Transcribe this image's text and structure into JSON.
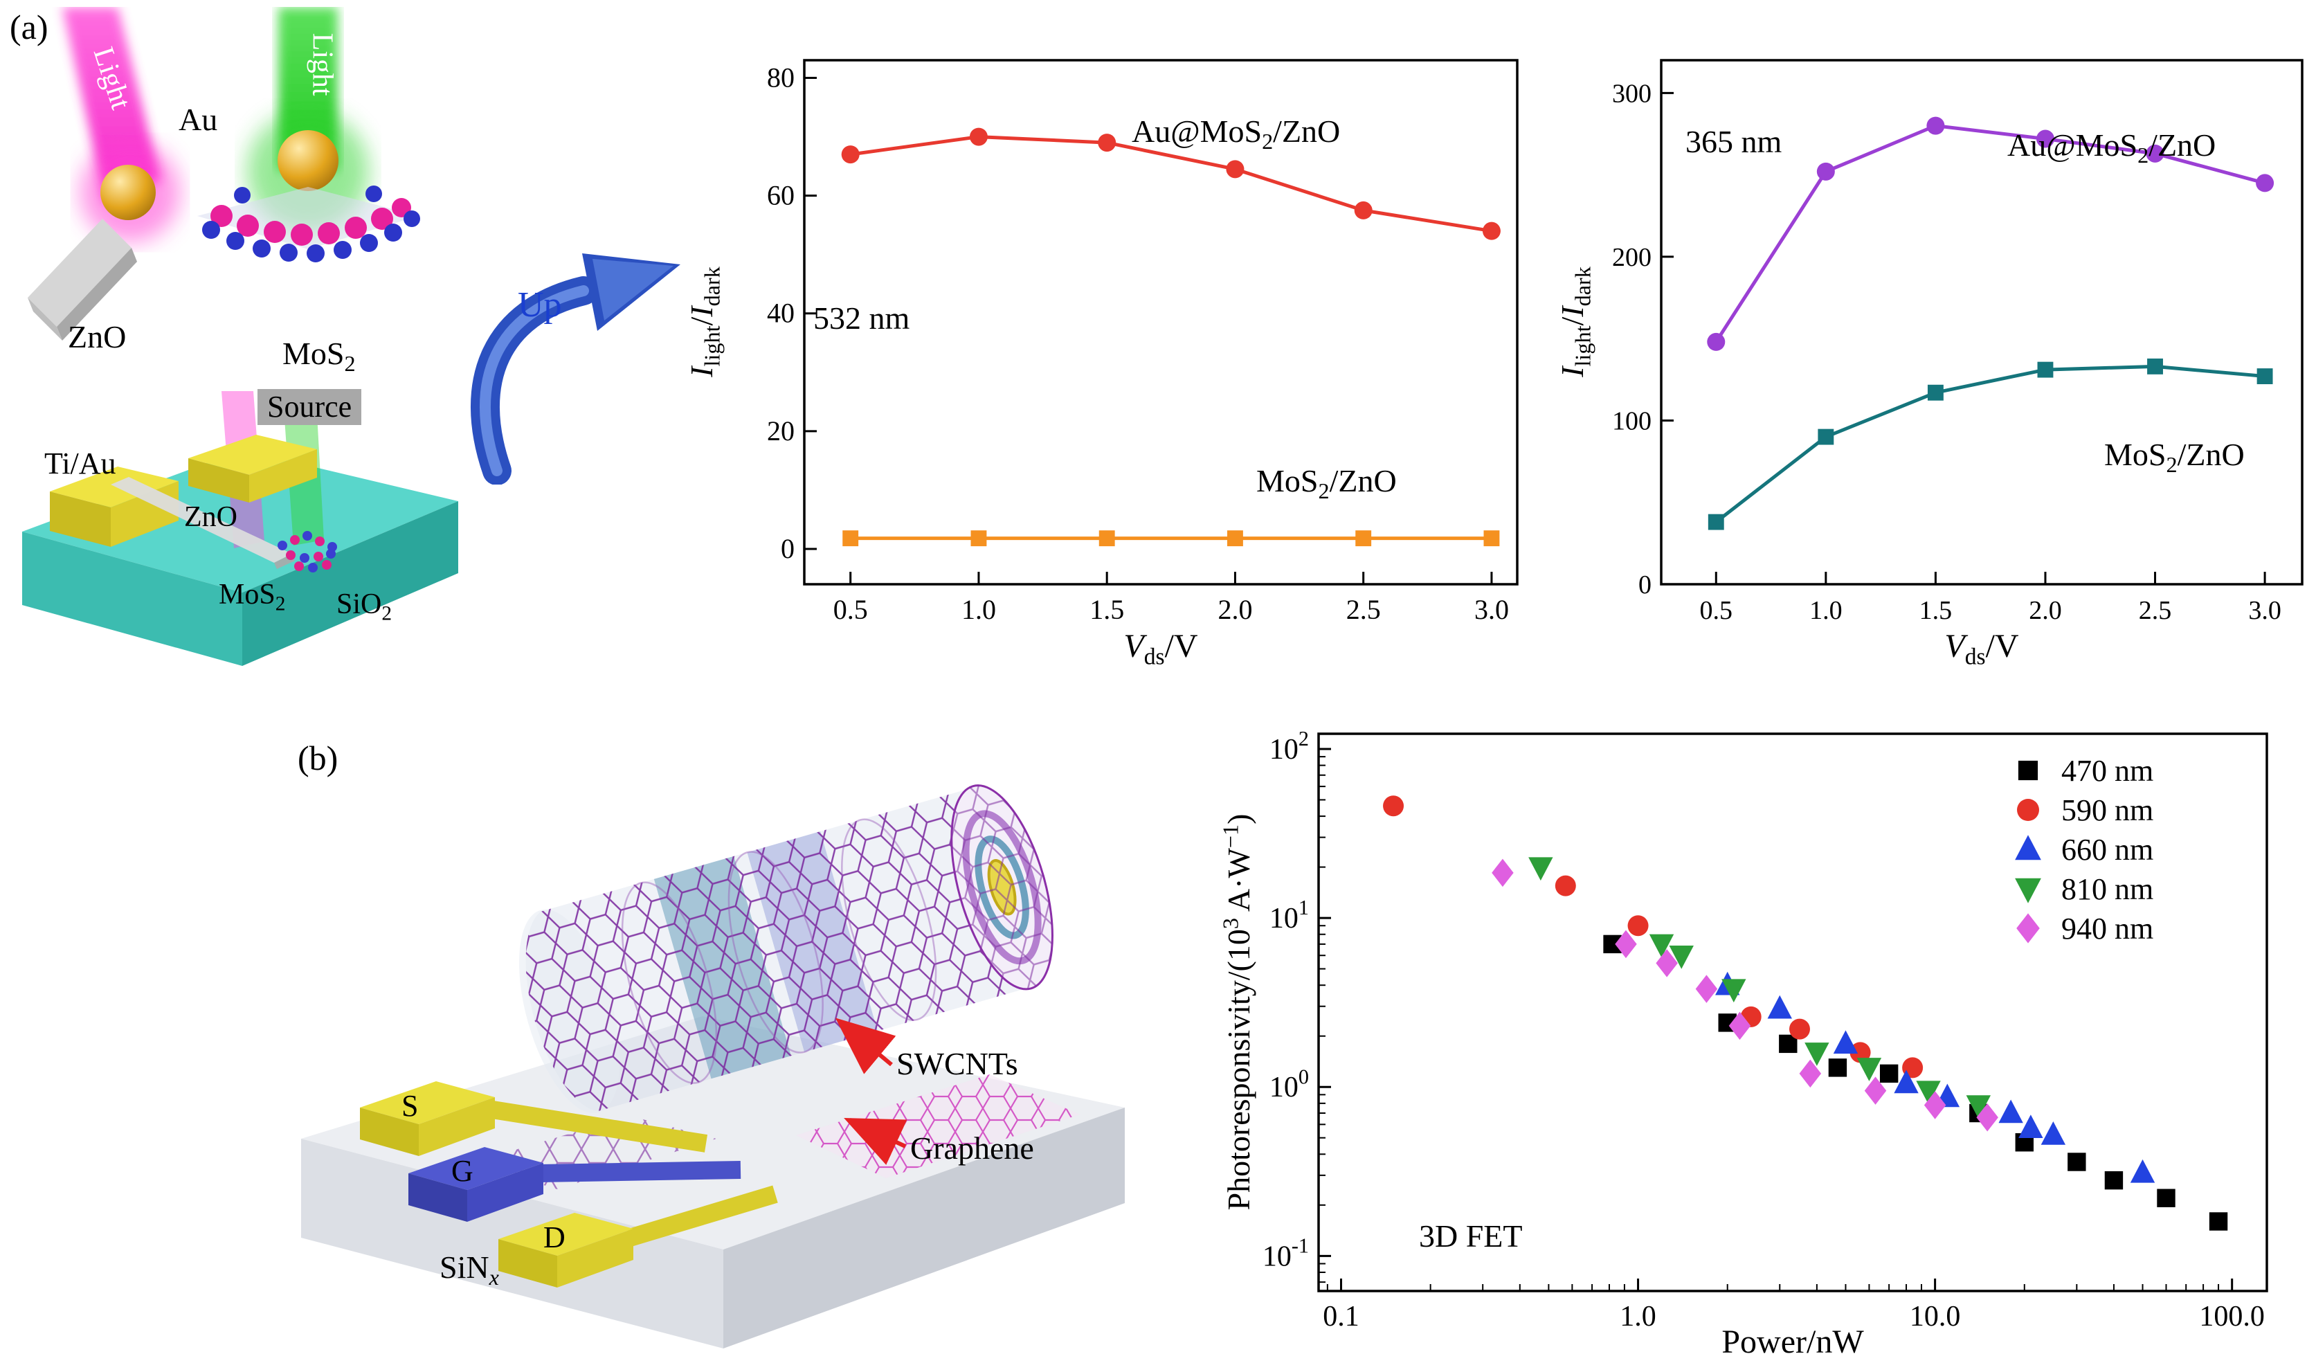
{
  "figure": {
    "panel_a_label": "(a)",
    "panel_b_label": "(b)"
  },
  "schematic_a": {
    "light_left": "Light",
    "light_right": "Light",
    "au": "Au",
    "zno_rod": "ZnO",
    "mos2": "MoS<sub>2</sub>",
    "source": "Source",
    "ti_au": "Ti/Au",
    "zno_device": "ZnO",
    "mos2_device": "MoS<sub>2</sub>",
    "sio2": "SiO<sub>2</sub>",
    "up": "Up"
  },
  "schematic_b": {
    "s": "S",
    "g": "G",
    "d": "D",
    "sinx": "SiN<sub><i>x</i></sub>",
    "swcnts": "SWCNTs",
    "graphene": "Graphene"
  },
  "colors": {
    "series_532_au": "#e8392f",
    "series_532_mos2": "#f59120",
    "series_365_au": "#9b3fd4",
    "series_365_mos2": "#15757c",
    "fet_470": "#000000",
    "fet_590": "#e53228",
    "fet_660": "#2243e0",
    "fet_810": "#2d9e38",
    "fet_940": "#df5fe0",
    "up_arrow_blue": "#2b50c0",
    "pointer_red": "#e62222"
  },
  "chart_data": [
    {
      "id": "chart-532",
      "type": "line",
      "annotation": "532 nm",
      "xlabel_html": "<i>V</i><sub>ds</sub>/V",
      "ylabel_html": "<i>I</i><sub>light</sub>/<i>I</i><sub>dark</sub>",
      "x": [
        0.5,
        1.0,
        1.5,
        2.0,
        2.5,
        3.0
      ],
      "xlim": [
        0.32,
        3.1
      ],
      "ylim": [
        -6,
        83
      ],
      "xticks": [
        0.5,
        1.0,
        1.5,
        2.0,
        2.5,
        3.0
      ],
      "xtick_labels": [
        "0.5",
        "1.0",
        "1.5",
        "2.0",
        "2.5",
        "3.0"
      ],
      "yticks": [
        0,
        20,
        40,
        60,
        80
      ],
      "ytick_labels": [
        "0",
        "20",
        "40",
        "60",
        "80"
      ],
      "series": [
        {
          "name": "Au@MoS<sub>2</sub>/ZnO",
          "marker": "circle",
          "color": "#e8392f",
          "values": [
            67,
            70,
            69,
            64.5,
            57.5,
            54
          ]
        },
        {
          "name": "MoS<sub>2</sub>/ZnO",
          "marker": "square",
          "color": "#f59120",
          "values": [
            1.8,
            1.8,
            1.8,
            1.8,
            1.8,
            1.8
          ]
        }
      ]
    },
    {
      "id": "chart-365",
      "type": "line",
      "annotation": "365 nm",
      "xlabel_html": "<i>V</i><sub>ds</sub>/V",
      "ylabel_html": "<i>I</i><sub>light</sub>/<i>I</i><sub>dark</sub>",
      "x": [
        0.5,
        1.0,
        1.5,
        2.0,
        2.5,
        3.0
      ],
      "xlim": [
        0.25,
        3.17
      ],
      "ylim": [
        0,
        320
      ],
      "xticks": [
        0.5,
        1.0,
        1.5,
        2.0,
        2.5,
        3.0
      ],
      "xtick_labels": [
        "0.5",
        "1.0",
        "1.5",
        "2.0",
        "2.5",
        "3.0"
      ],
      "yticks": [
        0,
        100,
        200,
        300
      ],
      "ytick_labels": [
        "0",
        "100",
        "200",
        "300"
      ],
      "series": [
        {
          "name": "Au@MoS<sub>2</sub>/ZnO",
          "marker": "circle",
          "color": "#9b3fd4",
          "values": [
            148,
            252,
            280,
            272,
            263,
            245
          ]
        },
        {
          "name": "MoS<sub>2</sub>/ZnO",
          "marker": "square",
          "color": "#15757c",
          "values": [
            38,
            90,
            117,
            131,
            133,
            127
          ]
        }
      ]
    },
    {
      "id": "chart-fet",
      "type": "scatter-loglog",
      "annotation": "3D FET",
      "xlabel_html": "Power/nW",
      "ylabel_html": "Photoresponsivity/(10<sup>3</sup> A·W<sup>−1</sup>)",
      "xlim": [
        0.084,
        131
      ],
      "ylim": [
        0.062,
        123
      ],
      "xticks": [
        0.1,
        1,
        10,
        100
      ],
      "xtick_labels": [
        "0.1",
        "1.0",
        "10.0",
        "100.0"
      ],
      "ytick_exps": [
        -1,
        0,
        1,
        2
      ],
      "legend": true,
      "series": [
        {
          "name": "470 nm",
          "marker": "square",
          "color": "#000000",
          "points": [
            [
              0.82,
              7
            ],
            [
              2.0,
              2.4
            ],
            [
              3.2,
              1.8
            ],
            [
              4.7,
              1.3
            ],
            [
              7.0,
              1.2
            ],
            [
              14,
              0.7
            ],
            [
              20,
              0.47
            ],
            [
              30,
              0.36
            ],
            [
              40,
              0.28
            ],
            [
              60,
              0.22
            ],
            [
              90,
              0.16
            ]
          ]
        },
        {
          "name": "590 nm",
          "marker": "circle",
          "color": "#e53228",
          "points": [
            [
              0.15,
              46
            ],
            [
              0.57,
              15.5
            ],
            [
              1.0,
              9
            ],
            [
              2.4,
              2.6
            ],
            [
              3.5,
              2.2
            ],
            [
              5.6,
              1.6
            ],
            [
              8.4,
              1.3
            ]
          ]
        },
        {
          "name": "660 nm",
          "marker": "triangle-up",
          "color": "#2243e0",
          "points": [
            [
              2.0,
              4.0
            ],
            [
              3.0,
              2.9
            ],
            [
              5.0,
              1.8
            ],
            [
              8.0,
              1.05
            ],
            [
              11,
              0.87
            ],
            [
              18,
              0.7
            ],
            [
              21,
              0.57
            ],
            [
              25,
              0.52
            ],
            [
              50,
              0.31
            ]
          ]
        },
        {
          "name": "810 nm",
          "marker": "triangle-down",
          "color": "#2d9e38",
          "points": [
            [
              0.47,
              20
            ],
            [
              1.2,
              7
            ],
            [
              1.4,
              6
            ],
            [
              2.1,
              3.8
            ],
            [
              4.0,
              1.6
            ],
            [
              6.0,
              1.3
            ],
            [
              9.5,
              0.95
            ],
            [
              14,
              0.78
            ]
          ]
        },
        {
          "name": "940 nm",
          "marker": "diamond",
          "color": "#df5fe0",
          "points": [
            [
              0.35,
              18.5
            ],
            [
              0.91,
              7
            ],
            [
              1.25,
              5.4
            ],
            [
              1.7,
              3.8
            ],
            [
              2.2,
              2.3
            ],
            [
              3.8,
              1.2
            ],
            [
              6.3,
              0.95
            ],
            [
              10,
              0.78
            ],
            [
              15,
              0.66
            ]
          ]
        }
      ]
    }
  ]
}
